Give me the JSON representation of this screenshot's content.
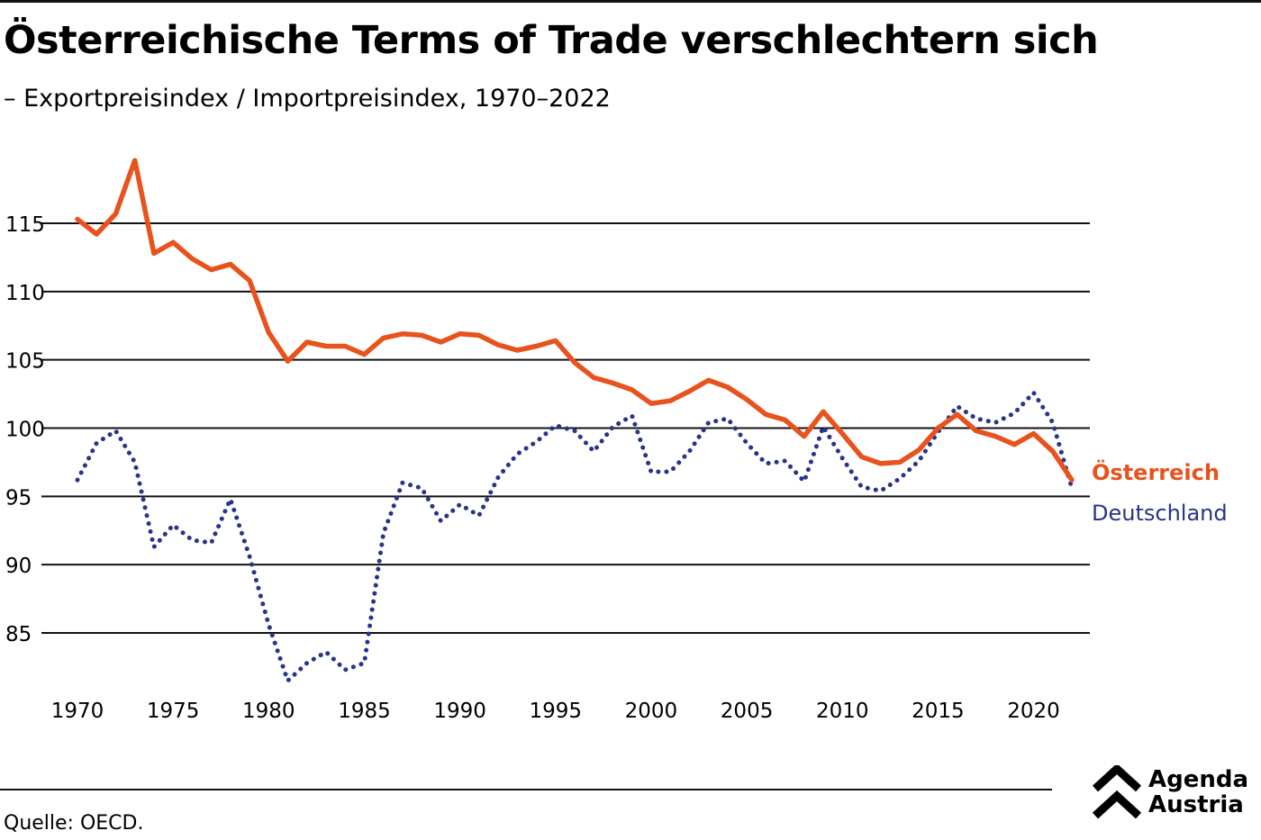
{
  "header": {
    "title": "Österreichische Terms of Trade verschlechtern sich",
    "subtitle": "– Exportpreisindex / Importpreisindex, 1970–2022"
  },
  "footer": {
    "source": "Quelle: OECD.",
    "logo_line1": "Agenda",
    "logo_line2": "Austria"
  },
  "colors": {
    "oesterreich": "#e8521c",
    "deutschland": "#27348b",
    "gridline": "#111111"
  },
  "chart_data": {
    "type": "line",
    "title": "Österreichische Terms of Trade verschlechtern sich",
    "subtitle": "– Exportpreisindex / Importpreisindex, 1970–2022",
    "xlabel": "",
    "ylabel": "",
    "xlim": [
      1970,
      2022
    ],
    "ylim": [
      82,
      120
    ],
    "x_ticks": [
      1970,
      1975,
      1980,
      1985,
      1990,
      1995,
      2000,
      2005,
      2010,
      2015,
      2020
    ],
    "y_ticks": [
      85,
      90,
      95,
      100,
      105,
      110,
      115
    ],
    "grid": "horizontal",
    "legend": "direct labels at line ends (right)",
    "x": [
      1970,
      1971,
      1972,
      1973,
      1974,
      1975,
      1976,
      1977,
      1978,
      1979,
      1980,
      1981,
      1982,
      1983,
      1984,
      1985,
      1986,
      1987,
      1988,
      1989,
      1990,
      1991,
      1992,
      1993,
      1994,
      1995,
      1996,
      1997,
      1998,
      1999,
      2000,
      2001,
      2002,
      2003,
      2004,
      2005,
      2006,
      2007,
      2008,
      2009,
      2010,
      2011,
      2012,
      2013,
      2014,
      2015,
      2016,
      2017,
      2018,
      2019,
      2020,
      2021,
      2022
    ],
    "series": [
      {
        "name": "Österreich",
        "style": "solid",
        "values": [
          115.3,
          114.2,
          115.7,
          119.6,
          112.8,
          113.6,
          112.4,
          111.6,
          112.0,
          110.8,
          107.0,
          104.9,
          106.3,
          106.0,
          106.0,
          105.4,
          106.6,
          106.9,
          106.8,
          106.3,
          106.9,
          106.8,
          106.1,
          105.7,
          106.0,
          106.4,
          104.8,
          103.7,
          103.3,
          102.8,
          101.8,
          102.0,
          102.7,
          103.5,
          103.0,
          102.1,
          101.0,
          100.6,
          99.4,
          101.2,
          99.6,
          97.9,
          97.4,
          97.5,
          98.4,
          100.0,
          101.0,
          99.8,
          99.4,
          98.8,
          99.6,
          98.3,
          96.2
        ]
      },
      {
        "name": "Deutschland",
        "style": "dotted",
        "values": [
          96.2,
          98.9,
          99.8,
          97.5,
          91.3,
          92.9,
          91.8,
          91.6,
          94.8,
          90.6,
          85.6,
          81.5,
          82.8,
          83.6,
          82.3,
          82.8,
          92.3,
          96.0,
          95.6,
          93.2,
          94.4,
          93.6,
          96.4,
          98.1,
          99.0,
          100.2,
          99.8,
          98.3,
          100.1,
          100.9,
          96.8,
          96.8,
          98.3,
          100.4,
          100.7,
          98.9,
          97.4,
          97.6,
          96.1,
          100.1,
          97.8,
          95.7,
          95.4,
          96.3,
          97.6,
          99.7,
          101.6,
          100.7,
          100.4,
          101.1,
          102.6,
          100.4,
          95.6
        ]
      }
    ]
  }
}
